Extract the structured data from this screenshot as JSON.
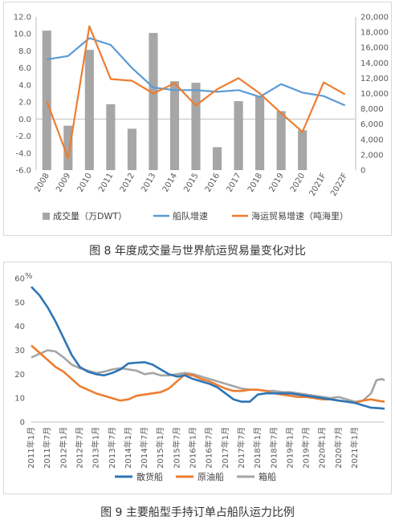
{
  "chart_data": [
    {
      "type": "bar+line",
      "title": "",
      "categories": [
        "2008",
        "2009",
        "2010",
        "2011",
        "2012",
        "2013",
        "2014",
        "2015",
        "2016",
        "2017",
        "2018",
        "2019",
        "2020",
        "2021F",
        "2022F"
      ],
      "left_axis": {
        "ylim": [
          -6,
          12
        ],
        "ticks": [
          "12.0",
          "10.0",
          "8.0",
          "6.0",
          "4.0",
          "2.0",
          "0.0",
          "-2.0",
          "-4.0",
          "-6.0"
        ]
      },
      "right_axis": {
        "ylim": [
          0,
          20000
        ],
        "ticks": [
          "20,000",
          "18,000",
          "16,000",
          "14,000",
          "12,000",
          "10,000",
          "8,000",
          "6,000",
          "4,000",
          "2,000",
          "0"
        ]
      },
      "series": [
        {
          "name": "成交量（万DWT）",
          "kind": "bar",
          "axis": "right",
          "color": "#a6a6a6",
          "values": [
            18200,
            5800,
            15700,
            8600,
            5400,
            17900,
            11600,
            11400,
            3000,
            9000,
            9700,
            7700,
            5200,
            null,
            null
          ]
        },
        {
          "name": "船队增速",
          "kind": "line",
          "axis": "left",
          "color": "#5b9bd5",
          "values": [
            7.0,
            7.4,
            9.5,
            8.7,
            6.0,
            3.7,
            3.4,
            3.4,
            3.2,
            3.4,
            2.6,
            4.1,
            3.1,
            2.7,
            1.6
          ]
        },
        {
          "name": "海运贸易增速（吨海里）",
          "kind": "line",
          "axis": "left",
          "color": "#ed7d31",
          "values": [
            2.1,
            -4.6,
            10.9,
            4.7,
            4.5,
            3.0,
            4.2,
            1.6,
            3.5,
            4.8,
            3.0,
            0.7,
            -1.5,
            4.3,
            2.9
          ]
        }
      ],
      "caption": "图 8  年度成交量与世界航运贸易量变化对比"
    },
    {
      "type": "line",
      "title": "",
      "ylabel": "%",
      "ylim": [
        0,
        60
      ],
      "yticks": [
        "60",
        "50",
        "40",
        "30",
        "20",
        "10",
        "0"
      ],
      "x_labels": [
        "2011年1月",
        "2011年7月",
        "2012年1月",
        "2012年7月",
        "2013年1月",
        "2013年7月",
        "2014年1月",
        "2014年7月",
        "2015年1月",
        "2015年7月",
        "2016年1月",
        "2016年7月",
        "2017年1月",
        "2017年7月",
        "2018年1月",
        "2018年7月",
        "2019年1月",
        "2019年7月",
        "2020年1月",
        "2020年7月",
        "2021年1月"
      ],
      "x_range_months": [
        0,
        131
      ],
      "series": [
        {
          "name": "散货船",
          "color": "#2e75b6",
          "points": [
            [
              0,
              56.5
            ],
            [
              3,
              53
            ],
            [
              6,
              48
            ],
            [
              9,
              42
            ],
            [
              12,
              35
            ],
            [
              15,
              28
            ],
            [
              18,
              23
            ],
            [
              21,
              21
            ],
            [
              24,
              20
            ],
            [
              27,
              19.5
            ],
            [
              30,
              20.5
            ],
            [
              33,
              22
            ],
            [
              36,
              24.5
            ],
            [
              39,
              24.8
            ],
            [
              42,
              25
            ],
            [
              45,
              24
            ],
            [
              48,
              22
            ],
            [
              51,
              20
            ],
            [
              54,
              19
            ],
            [
              57,
              19.5
            ],
            [
              60,
              18
            ],
            [
              63,
              17
            ],
            [
              66,
              16
            ],
            [
              69,
              14.5
            ],
            [
              72,
              12
            ],
            [
              75,
              9.5
            ],
            [
              78,
              8.5
            ],
            [
              81,
              8.5
            ],
            [
              84,
              11.5
            ],
            [
              87,
              12
            ],
            [
              90,
              12
            ],
            [
              93,
              12
            ],
            [
              96,
              12
            ],
            [
              99,
              11.5
            ],
            [
              102,
              11
            ],
            [
              105,
              10.5
            ],
            [
              108,
              10
            ],
            [
              111,
              9.5
            ],
            [
              114,
              9
            ],
            [
              117,
              8.5
            ],
            [
              120,
              8
            ],
            [
              123,
              7
            ],
            [
              126,
              6
            ],
            [
              129,
              5.8
            ],
            [
              131,
              5.6
            ]
          ]
        },
        {
          "name": "原油船",
          "color": "#ed7d31",
          "points": [
            [
              0,
              32
            ],
            [
              3,
              29
            ],
            [
              6,
              26
            ],
            [
              9,
              23
            ],
            [
              12,
              21
            ],
            [
              15,
              18
            ],
            [
              18,
              15
            ],
            [
              21,
              13.5
            ],
            [
              24,
              12
            ],
            [
              27,
              11
            ],
            [
              30,
              10
            ],
            [
              33,
              9
            ],
            [
              36,
              9.5
            ],
            [
              39,
              11
            ],
            [
              42,
              11.5
            ],
            [
              45,
              12
            ],
            [
              48,
              12.5
            ],
            [
              51,
              14
            ],
            [
              54,
              17
            ],
            [
              57,
              20
            ],
            [
              60,
              19.5
            ],
            [
              63,
              18
            ],
            [
              66,
              17
            ],
            [
              69,
              15.5
            ],
            [
              72,
              14
            ],
            [
              75,
              13
            ],
            [
              78,
              13
            ],
            [
              81,
              13.5
            ],
            [
              84,
              13.5
            ],
            [
              87,
              13
            ],
            [
              90,
              12
            ],
            [
              93,
              11.5
            ],
            [
              96,
              11
            ],
            [
              99,
              10.5
            ],
            [
              102,
              10.5
            ],
            [
              105,
              10
            ],
            [
              108,
              9.5
            ],
            [
              111,
              9.5
            ],
            [
              114,
              9
            ],
            [
              117,
              8.5
            ],
            [
              120,
              8
            ],
            [
              123,
              9
            ],
            [
              126,
              9.5
            ],
            [
              129,
              8.8
            ],
            [
              131,
              8.5
            ]
          ]
        },
        {
          "name": "箱船",
          "color": "#a5a5a5",
          "points": [
            [
              0,
              27
            ],
            [
              3,
              28.5
            ],
            [
              6,
              30
            ],
            [
              9,
              29.5
            ],
            [
              12,
              27
            ],
            [
              15,
              24
            ],
            [
              18,
              22.5
            ],
            [
              21,
              21.5
            ],
            [
              24,
              20.5
            ],
            [
              27,
              21
            ],
            [
              30,
              22
            ],
            [
              33,
              22.5
            ],
            [
              36,
              22
            ],
            [
              39,
              21.5
            ],
            [
              42,
              20
            ],
            [
              45,
              20.5
            ],
            [
              48,
              19.5
            ],
            [
              51,
              19.5
            ],
            [
              54,
              20
            ],
            [
              57,
              20.5
            ],
            [
              60,
              20
            ],
            [
              63,
              19
            ],
            [
              66,
              18
            ],
            [
              69,
              17
            ],
            [
              72,
              16
            ],
            [
              75,
              15
            ],
            [
              78,
              14
            ],
            [
              81,
              13.5
            ],
            [
              84,
              13.5
            ],
            [
              87,
              13
            ],
            [
              90,
              13
            ],
            [
              93,
              12.5
            ],
            [
              96,
              12.5
            ],
            [
              99,
              12
            ],
            [
              102,
              11.5
            ],
            [
              105,
              11
            ],
            [
              108,
              10.5
            ],
            [
              111,
              10
            ],
            [
              114,
              10.5
            ],
            [
              117,
              9.5
            ],
            [
              120,
              8.5
            ],
            [
              123,
              9
            ],
            [
              126,
              12
            ],
            [
              128,
              17.5
            ],
            [
              130,
              18
            ],
            [
              131,
              17.5
            ]
          ]
        }
      ],
      "caption": "图 9  主要船型手持订单占船队运力比例"
    }
  ]
}
